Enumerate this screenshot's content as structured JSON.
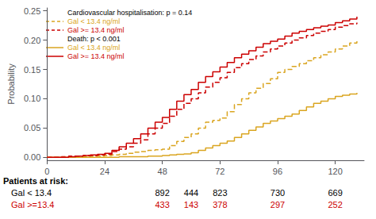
{
  "chart_data": {
    "type": "step",
    "ylabel": "Probability",
    "xlim": [
      0,
      132
    ],
    "xticks": [
      0,
      24,
      48,
      72,
      96,
      120
    ],
    "ylim": [
      -0.005,
      0.255
    ],
    "yticks": [
      {
        "value": 0,
        "label": "0.00"
      },
      0.05,
      {
        "value": 0.1,
        "label": "0.10"
      },
      0.15,
      {
        "value": 0.2,
        "label": "0.20"
      },
      0.25
    ],
    "grid": false,
    "legend": "upper left",
    "series": [
      {
        "name": "Gal < 13.4 ng/ml",
        "group": "Cardiovascular hospitalisation: p = 0.14",
        "color": "#DAA520",
        "line_style": "dashed",
        "x": [
          0,
          3,
          6,
          9,
          12,
          15,
          18,
          21,
          24,
          27,
          30,
          33,
          36,
          39,
          42,
          45,
          48,
          51,
          54,
          57,
          60,
          63,
          66,
          69,
          72,
          75,
          78,
          81,
          84,
          87,
          90,
          93,
          96,
          99,
          102,
          105,
          108,
          111,
          114,
          117,
          120,
          123,
          126,
          129
        ],
        "values": [
          0,
          0,
          0,
          0.001,
          0.001,
          0.001,
          0.002,
          0.002,
          0.003,
          0.004,
          0.005,
          0.007,
          0.009,
          0.01,
          0.012,
          0.013,
          0.014,
          0.02,
          0.027,
          0.034,
          0.04,
          0.05,
          0.06,
          0.063,
          0.067,
          0.078,
          0.09,
          0.1,
          0.11,
          0.118,
          0.126,
          0.134,
          0.145,
          0.15,
          0.155,
          0.16,
          0.165,
          0.17,
          0.175,
          0.18,
          0.185,
          0.19,
          0.195,
          0.2
        ]
      },
      {
        "name": "Gal >= 13.4 ng/ml",
        "group": "Cardiovascular hospitalisation: p = 0.14",
        "color": "#CC0000",
        "line_style": "dashed",
        "x": [
          0,
          3,
          6,
          9,
          12,
          15,
          18,
          21,
          24,
          27,
          30,
          33,
          36,
          39,
          42,
          45,
          48,
          51,
          54,
          57,
          60,
          63,
          66,
          69,
          72,
          75,
          78,
          81,
          84,
          87,
          90,
          93,
          96,
          99,
          102,
          105,
          108,
          111,
          114,
          117,
          120,
          123,
          126,
          129
        ],
        "values": [
          0,
          0,
          0.001,
          0.002,
          0.002,
          0.003,
          0.003,
          0.004,
          0.005,
          0.01,
          0.014,
          0.018,
          0.024,
          0.03,
          0.04,
          0.05,
          0.058,
          0.07,
          0.082,
          0.092,
          0.1,
          0.11,
          0.12,
          0.128,
          0.136,
          0.145,
          0.153,
          0.16,
          0.167,
          0.173,
          0.18,
          0.185,
          0.19,
          0.195,
          0.2,
          0.204,
          0.208,
          0.212,
          0.215,
          0.218,
          0.222,
          0.225,
          0.228,
          0.23
        ]
      },
      {
        "name": "Gal < 13.4 ng/ml",
        "group": "Death: p < 0.001",
        "color": "#DAA520",
        "line_style": "solid",
        "x": [
          0,
          3,
          6,
          9,
          12,
          15,
          18,
          21,
          24,
          27,
          30,
          33,
          36,
          39,
          42,
          45,
          48,
          51,
          54,
          57,
          60,
          63,
          66,
          69,
          72,
          75,
          78,
          81,
          84,
          87,
          90,
          93,
          96,
          99,
          102,
          105,
          108,
          111,
          114,
          117,
          120,
          123,
          126,
          129
        ],
        "values": [
          0,
          0,
          0,
          0,
          0,
          0,
          0,
          0,
          0,
          0,
          0.001,
          0.001,
          0.001,
          0.001,
          0.002,
          0.002,
          0.003,
          0.004,
          0.005,
          0.006,
          0.008,
          0.012,
          0.016,
          0.02,
          0.024,
          0.028,
          0.034,
          0.04,
          0.046,
          0.052,
          0.058,
          0.062,
          0.066,
          0.07,
          0.074,
          0.08,
          0.086,
          0.092,
          0.096,
          0.1,
          0.104,
          0.106,
          0.108,
          0.11
        ]
      },
      {
        "name": "Gal >= 13.4 ng/ml",
        "group": "Death: p < 0.001",
        "color": "#CC0000",
        "line_style": "solid",
        "x": [
          0,
          3,
          6,
          9,
          12,
          15,
          18,
          21,
          24,
          27,
          30,
          33,
          36,
          39,
          42,
          45,
          48,
          51,
          54,
          57,
          60,
          63,
          66,
          69,
          72,
          75,
          78,
          81,
          84,
          87,
          90,
          93,
          96,
          99,
          102,
          105,
          108,
          111,
          114,
          117,
          120,
          123,
          126,
          129
        ],
        "values": [
          0,
          0,
          0,
          0.001,
          0.002,
          0.003,
          0.004,
          0.005,
          0.007,
          0.012,
          0.018,
          0.024,
          0.032,
          0.04,
          0.05,
          0.06,
          0.068,
          0.082,
          0.096,
          0.107,
          0.116,
          0.128,
          0.138,
          0.146,
          0.154,
          0.162,
          0.17,
          0.176,
          0.182,
          0.188,
          0.194,
          0.198,
          0.202,
          0.207,
          0.212,
          0.215,
          0.218,
          0.221,
          0.224,
          0.226,
          0.23,
          0.233,
          0.236,
          0.24
        ]
      }
    ],
    "risk_table": {
      "title": "Patients at risk:",
      "x": [
        48,
        60,
        72,
        96,
        120
      ],
      "rows": [
        {
          "name": "Gal < 13.4",
          "values": [
            892,
            444,
            823,
            730,
            669
          ]
        },
        {
          "name": "Gal >=13.4",
          "color": "#CC0000",
          "values": [
            433,
            143,
            378,
            297,
            252
          ]
        }
      ]
    }
  }
}
